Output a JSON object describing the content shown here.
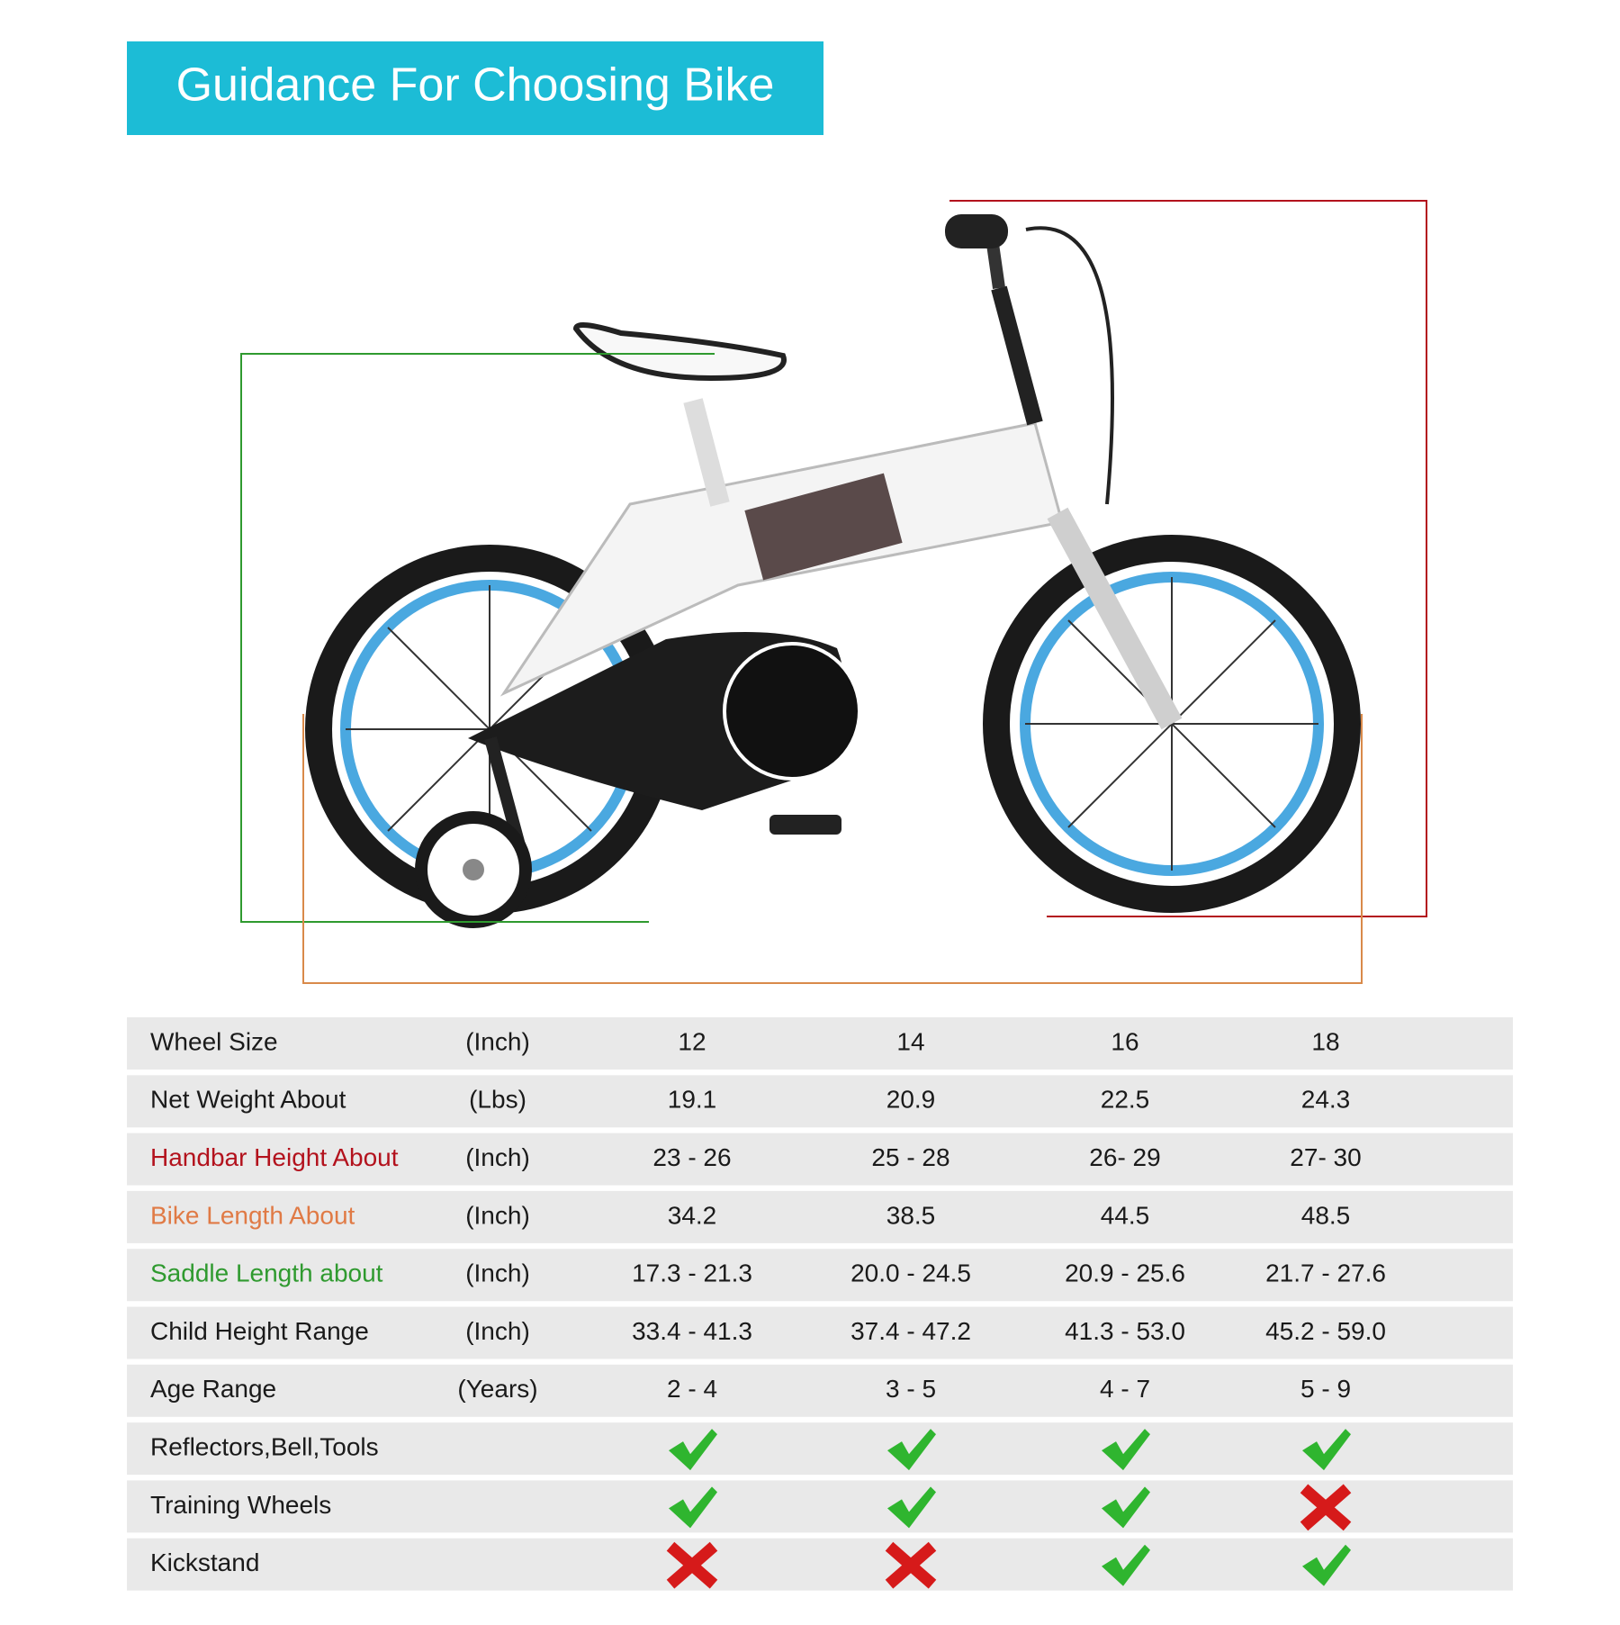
{
  "header": {
    "title": "Guidance For Choosing Bike"
  },
  "table": {
    "rows": [
      {
        "label": "Wheel Size",
        "unit": "(Inch)",
        "values": [
          "12",
          "14",
          "16",
          "18"
        ]
      },
      {
        "label": "Net Weight About",
        "unit": "(Lbs)",
        "values": [
          "19.1",
          "20.9",
          "22.5",
          "24.3"
        ]
      },
      {
        "label": "Handbar Height About",
        "unit": "(Inch)",
        "values": [
          "23 - 26",
          "25 - 28",
          "26- 29",
          "27- 30"
        ],
        "color": "#b3121d"
      },
      {
        "label": "Bike Length About",
        "unit": "(Inch)",
        "values": [
          "34.2",
          "38.5",
          "44.5",
          "48.5"
        ],
        "color": "#e07a45"
      },
      {
        "label": "Saddle Length about",
        "unit": "(Inch)",
        "values": [
          "17.3 - 21.3",
          "20.0 - 24.5",
          "20.9 - 25.6",
          "21.7 - 27.6"
        ],
        "color": "#2f9a2f"
      },
      {
        "label": "Child Height Range",
        "unit": "(Inch)",
        "values": [
          "33.4 - 41.3",
          "37.4 - 47.2",
          "41.3 - 53.0",
          "45.2 - 59.0"
        ]
      },
      {
        "label": "Age Range",
        "unit": "(Years)",
        "values": [
          "2 - 4",
          "3 - 5",
          "4 - 7",
          "5 - 9"
        ]
      },
      {
        "label": "Reflectors,Bell,Tools",
        "values": [
          true,
          true,
          true,
          true
        ]
      },
      {
        "label": "Training Wheels",
        "values": [
          true,
          true,
          true,
          false
        ]
      },
      {
        "label": "Kickstand",
        "values": [
          false,
          false,
          true,
          true
        ]
      }
    ]
  }
}
